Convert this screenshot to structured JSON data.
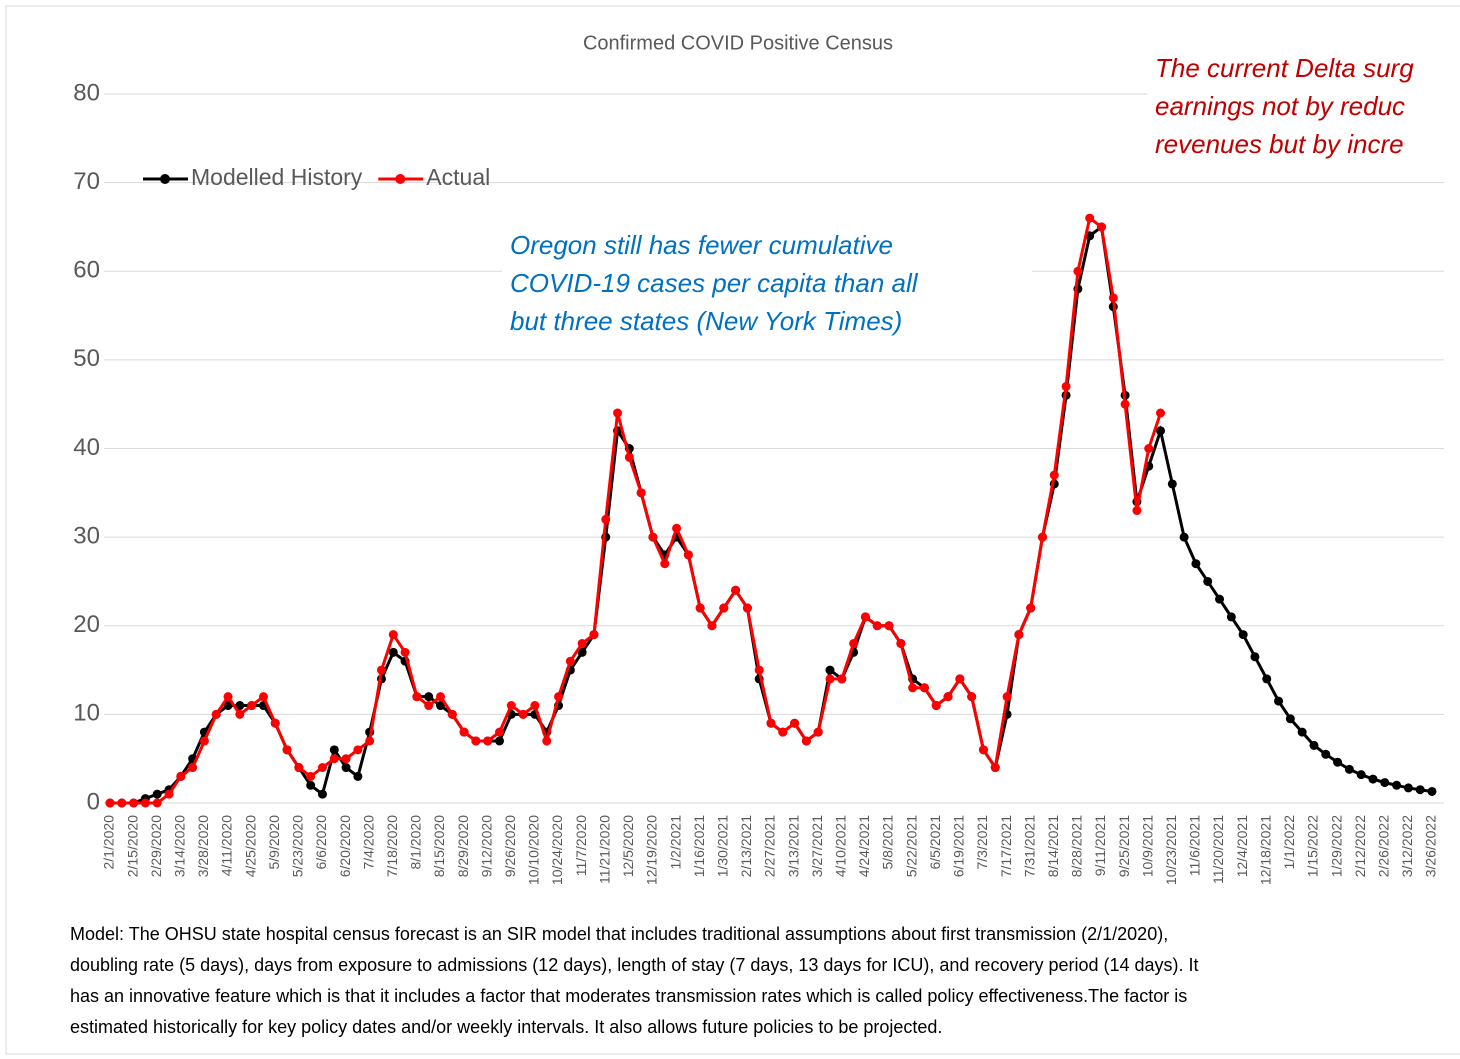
{
  "chart_data": {
    "type": "line",
    "title": "Confirmed COVID Positive Census",
    "categories": [
      "2/1/2020",
      null,
      "2/15/2020",
      null,
      "2/29/2020",
      null,
      "3/14/2020",
      null,
      "3/28/2020",
      null,
      "4/11/2020",
      null,
      "4/25/2020",
      null,
      "5/9/2020",
      null,
      "5/23/2020",
      null,
      "6/6/2020",
      null,
      "6/20/2020",
      null,
      "7/4/2020",
      null,
      "7/18/2020",
      null,
      "8/1/2020",
      null,
      "8/15/2020",
      null,
      "8/29/2020",
      null,
      "9/12/2020",
      null,
      "9/26/2020",
      null,
      "10/10/2020",
      null,
      "10/24/2020",
      null,
      "11/7/2020",
      null,
      "11/21/2020",
      null,
      "12/5/2020",
      null,
      "12/19/2020",
      null,
      "1/2/2021",
      null,
      "1/16/2021",
      null,
      "1/30/2021",
      null,
      "2/13/2021",
      null,
      "2/27/2021",
      null,
      "3/13/2021",
      null,
      "3/27/2021",
      null,
      "4/10/2021",
      null,
      "4/24/2021",
      null,
      "5/8/2021",
      null,
      "5/22/2021",
      null,
      "6/5/2021",
      null,
      "6/19/2021",
      null,
      "7/3/2021",
      null,
      "7/17/2021",
      null,
      "7/31/2021",
      null,
      "8/14/2021",
      null,
      "8/28/2021",
      null,
      "9/11/2021",
      null,
      "9/25/2021",
      null,
      "10/9/2021",
      null,
      "10/23/2021",
      null,
      "11/6/2021",
      null,
      "11/20/2021",
      null,
      "12/4/2021",
      null,
      "12/18/2021",
      null,
      "1/1/2022",
      null,
      "1/15/2022",
      null,
      "1/29/2022",
      null,
      "2/12/2022",
      null,
      "2/26/2022",
      null,
      "3/12/2022",
      null,
      "3/26/2022"
    ],
    "series": [
      {
        "name": "Modelled History",
        "color": "#000000",
        "values": [
          0,
          0,
          0,
          0.5,
          1,
          1.5,
          3,
          5,
          8,
          10,
          11,
          11,
          11,
          11,
          9,
          6,
          4,
          2,
          1,
          6,
          4,
          3,
          8,
          14,
          17,
          16,
          12,
          12,
          11,
          10,
          8,
          7,
          7,
          7,
          10,
          10,
          10,
          8,
          11,
          15,
          17,
          19,
          30,
          42,
          40,
          35,
          30,
          28,
          30,
          28,
          22,
          20,
          22,
          24,
          22,
          14,
          9,
          8,
          9,
          7,
          8,
          15,
          14,
          17,
          21,
          20,
          20,
          18,
          14,
          13,
          11,
          12,
          14,
          12,
          6,
          4,
          10,
          19,
          22,
          30,
          36,
          46,
          58,
          64,
          65,
          56,
          46,
          34,
          38,
          42,
          36,
          30,
          27,
          25,
          23,
          21,
          19,
          16.5,
          14,
          11.5,
          9.5,
          8,
          6.5,
          5.5,
          4.6,
          3.8,
          3.2,
          2.7,
          2.3,
          2,
          1.7,
          1.5,
          1.3
        ]
      },
      {
        "name": "Actual",
        "color": "#ff0000",
        "values": [
          0,
          0,
          0,
          0,
          0,
          1,
          3,
          4,
          7,
          10,
          12,
          10,
          11,
          12,
          9,
          6,
          4,
          3,
          4,
          5,
          5,
          6,
          7,
          15,
          19,
          17,
          12,
          11,
          12,
          10,
          8,
          7,
          7,
          8,
          11,
          10,
          11,
          7,
          12,
          16,
          18,
          19,
          32,
          44,
          39,
          35,
          30,
          27,
          31,
          28,
          22,
          20,
          22,
          24,
          22,
          15,
          9,
          8,
          9,
          7,
          8,
          14,
          14,
          18,
          21,
          20,
          20,
          18,
          13,
          13,
          11,
          12,
          14,
          12,
          6,
          4,
          12,
          19,
          22,
          30,
          37,
          47,
          60,
          66,
          65,
          57,
          45,
          33,
          40,
          44,
          null,
          null,
          null,
          null,
          null,
          null,
          null,
          null,
          null,
          null,
          null,
          null,
          null,
          null,
          null,
          null,
          null,
          null,
          null,
          null,
          null,
          null,
          null
        ]
      }
    ],
    "ylim": [
      0,
      80
    ],
    "yticks": [
      0,
      10,
      20,
      30,
      40,
      50,
      60,
      70,
      80
    ],
    "grid": true,
    "legend": "top-left",
    "annotations": [
      {
        "color": "#0070c0",
        "lines": [
          "Oregon still has fewer cumulative",
          "COVID-19 cases per capita than all",
          "but three states (New York Times)"
        ]
      },
      {
        "color": "#c00000",
        "lines": [
          "The current Delta surg",
          "earnings not by reduc",
          "revenues but by incre"
        ]
      }
    ],
    "footnote": [
      "Model: The OHSU state hospital census forecast is an SIR model that includes traditional assumptions about first transmission (2/1/2020),",
      "doubling rate (5  days), days from exposure to admissions (12 days), length of stay (7 days, 13 days for ICU), and recovery period (14 days). It",
      "has an innovative feature which is that it includes a factor that moderates transmission rates which is called policy effectiveness.The factor is",
      "estimated historically for key policy dates and/or weekly intervals. It also allows future policies to be projected."
    ]
  }
}
